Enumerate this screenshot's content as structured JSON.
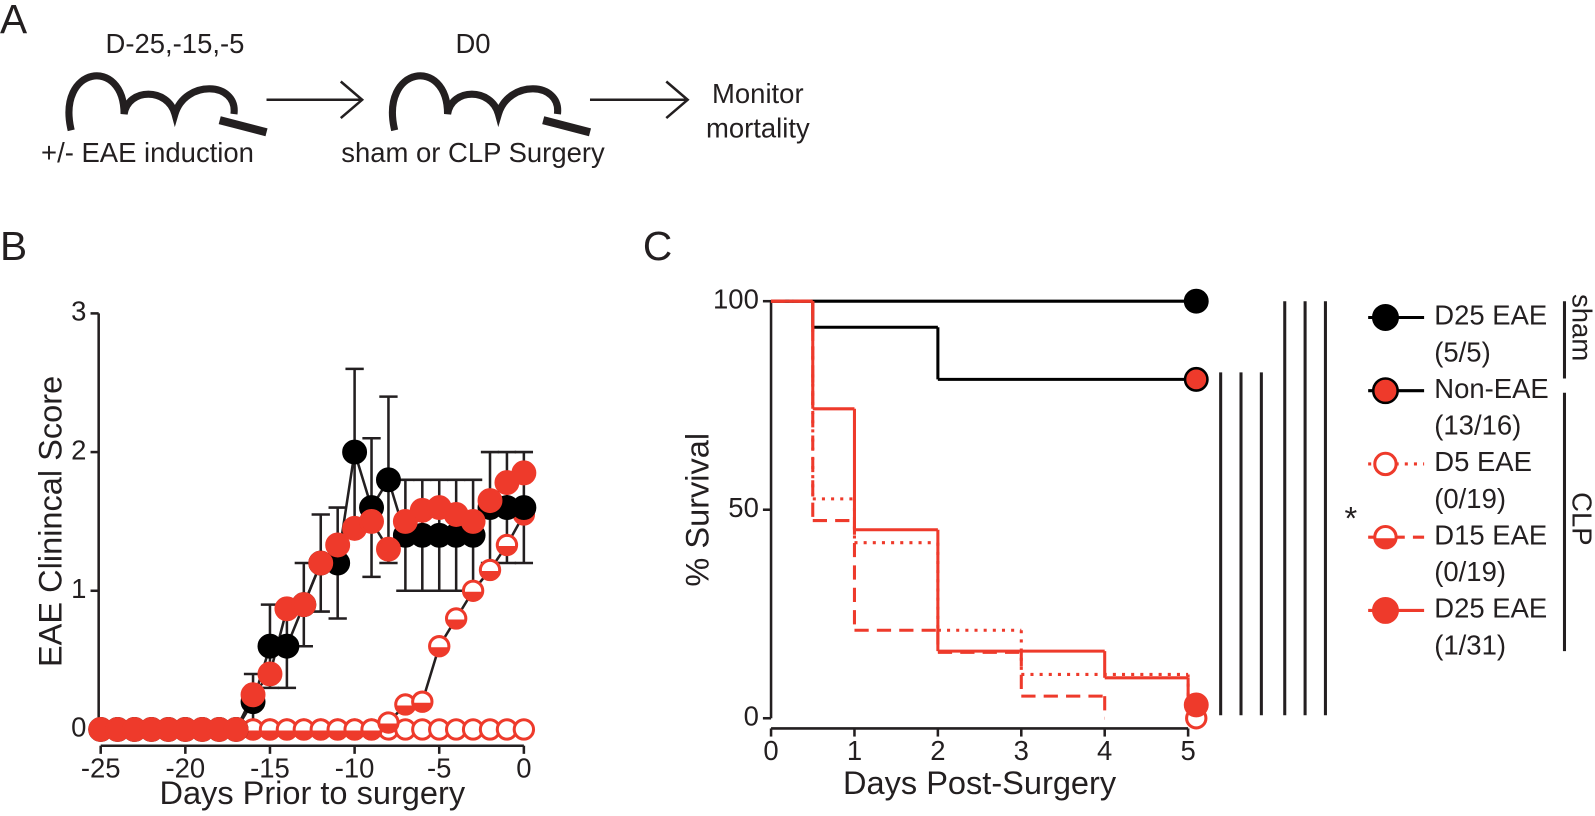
{
  "diagram": {
    "panel_label": "A",
    "step1_top": "D-25,-15,-5",
    "step1_bottom": "+/- EAE induction",
    "step2_top": "D0",
    "step2_bottom": "sham or CLP Surgery",
    "step3_line1": "Monitor",
    "step3_line2": "mortality"
  },
  "chart_data": [
    {
      "type": "line",
      "panel_label": "B",
      "x_label": "Days Prior to surgery",
      "y_label": "EAE Clinincal Score",
      "xlim": [
        -25,
        0
      ],
      "ylim": [
        0,
        3
      ],
      "xticks": [
        -25,
        -20,
        -15,
        -10,
        -5,
        0
      ],
      "yticks": [
        0,
        1,
        2,
        3
      ],
      "x": [
        -25,
        -24,
        -23,
        -22,
        -21,
        -20,
        -19,
        -18,
        -17,
        -16,
        -15,
        -14,
        -13,
        -12,
        -11,
        -10,
        -9,
        -8,
        -7,
        -6,
        -5,
        -4,
        -3,
        -2,
        -1,
        0
      ],
      "series": [
        {
          "color": "#ee3a2b",
          "marker": "open",
          "values": [
            0,
            0,
            0,
            0,
            0,
            0,
            0,
            0,
            0,
            0,
            0,
            0,
            0,
            0,
            0,
            0,
            0,
            0,
            0,
            0,
            0,
            0,
            0,
            0,
            0,
            0
          ]
        },
        {
          "color": "#ee3a2b",
          "marker": "half",
          "values": [
            0,
            0,
            0,
            0,
            0,
            0,
            0,
            0,
            0,
            0,
            0,
            0,
            0,
            0,
            0,
            0,
            0,
            0.05,
            0.18,
            0.2,
            0.6,
            0.8,
            1.0,
            1.15,
            1.33,
            1.55
          ]
        },
        {
          "color": "#000000",
          "marker": "filled",
          "values": [
            0,
            0,
            0,
            0,
            0,
            0,
            0,
            0,
            0,
            0.2,
            0.6,
            0.6,
            0.9,
            1.2,
            1.2,
            2.0,
            1.6,
            1.8,
            1.4,
            1.4,
            1.4,
            1.4,
            1.4,
            1.6,
            1.6,
            1.6
          ],
          "errors": [
            0,
            0,
            0,
            0,
            0,
            0,
            0,
            0,
            0,
            0.2,
            0.3,
            0.3,
            0.3,
            0.35,
            0.4,
            0.6,
            0.5,
            0.6,
            0.4,
            0.4,
            0.4,
            0.4,
            0.4,
            0.4,
            0.4,
            0.4
          ]
        },
        {
          "color": "#ee3a2b",
          "marker": "filled",
          "values": [
            0,
            0,
            0,
            0,
            0,
            0,
            0,
            0,
            0,
            0.25,
            0.4,
            0.87,
            0.9,
            1.2,
            1.33,
            1.45,
            1.5,
            1.3,
            1.5,
            1.58,
            1.6,
            1.55,
            1.5,
            1.65,
            1.78,
            1.85
          ]
        }
      ]
    },
    {
      "type": "survival",
      "panel_label": "C",
      "x_label": "Days Post-Surgery",
      "y_label": "% Survival",
      "xlim": [
        0,
        5
      ],
      "ylim": [
        0,
        100
      ],
      "xticks": [
        0,
        1,
        2,
        3,
        4,
        5
      ],
      "yticks": [
        0,
        50,
        100
      ],
      "annotation": "*",
      "legend_groups": [
        "sham",
        "CLP"
      ],
      "series": [
        {
          "name": "D25 EAE",
          "label": "(5/5)",
          "color": "#000000",
          "line_style": "solid",
          "marker": "filled",
          "marker_stroke": "#000000",
          "x": [
            0,
            5
          ],
          "values": [
            100,
            100
          ]
        },
        {
          "name": "Non-EAE",
          "label": "(13/16)",
          "color": "#000000",
          "line_style": "solid",
          "marker": "filled",
          "marker_fill": "#ee3a2b",
          "marker_stroke": "#000000",
          "x": [
            0,
            0.5,
            2,
            5
          ],
          "values": [
            100,
            93.75,
            81.25,
            81.25
          ]
        },
        {
          "name": "D5 EAE",
          "label": "(0/19)",
          "color": "#ee3a2b",
          "line_style": "dotted",
          "marker": "open",
          "x": [
            0,
            0.5,
            1,
            2,
            3,
            5
          ],
          "values": [
            100,
            52.6,
            42.1,
            21.1,
            10.5,
            0
          ]
        },
        {
          "name": "D15 EAE",
          "label": "(0/19)",
          "color": "#ee3a2b",
          "line_style": "dashed",
          "marker": "half",
          "end_marker": false,
          "x": [
            0,
            0.5,
            1,
            2,
            3,
            4
          ],
          "values": [
            100,
            47.4,
            21.1,
            15.8,
            5.3,
            0
          ]
        },
        {
          "name": "D25 EAE",
          "label": "(1/31)",
          "color": "#ee3a2b",
          "line_style": "solid",
          "marker": "filled",
          "x": [
            0,
            0.5,
            1,
            2,
            4,
            5
          ],
          "values": [
            100,
            74.2,
            45.2,
            16.1,
            9.7,
            3.2
          ]
        }
      ]
    }
  ]
}
